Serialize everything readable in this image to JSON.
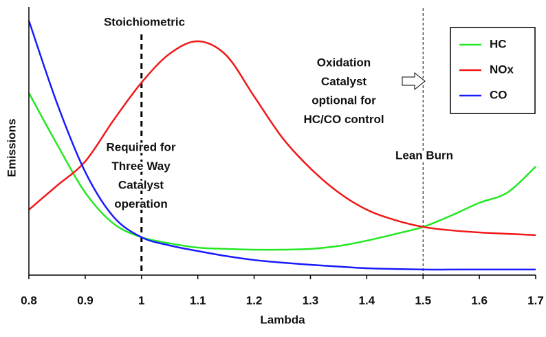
{
  "chart_data": {
    "type": "line",
    "x_label": "Lambda",
    "y_label": "Emissions",
    "x": [
      0.8,
      0.85,
      0.9,
      0.95,
      1.0,
      1.05,
      1.1,
      1.15,
      1.2,
      1.25,
      1.3,
      1.35,
      1.4,
      1.45,
      1.5,
      1.55,
      1.6,
      1.65,
      1.7
    ],
    "series": [
      {
        "name": "HC",
        "color": "#22e822",
        "values": [
          6.88,
          4.94,
          3.12,
          1.95,
          1.43,
          1.2,
          1.04,
          0.99,
          0.96,
          0.96,
          0.99,
          1.1,
          1.3,
          1.55,
          1.82,
          2.25,
          2.73,
          3.12,
          4.1
        ]
      },
      {
        "name": "NOx",
        "color": "#f01818",
        "values": [
          2.47,
          3.38,
          4.29,
          5.84,
          7.27,
          8.36,
          8.83,
          8.31,
          6.75,
          5.19,
          4.03,
          3.12,
          2.47,
          2.08,
          1.82,
          1.69,
          1.61,
          1.56,
          1.51
        ]
      },
      {
        "name": "CO",
        "color": "#1a1aff",
        "values": [
          9.61,
          6.49,
          3.9,
          2.21,
          1.43,
          1.12,
          0.91,
          0.72,
          0.57,
          0.47,
          0.39,
          0.32,
          0.26,
          0.23,
          0.21,
          0.21,
          0.21,
          0.21,
          0.21
        ]
      }
    ],
    "xlim": [
      0.8,
      1.7
    ],
    "xticks": [
      0.8,
      0.9,
      1,
      1.1,
      1.2,
      1.3,
      1.4,
      1.5,
      1.6,
      1.7
    ],
    "ylim": [
      0,
      10
    ],
    "reference_lines": [
      1,
      1.5
    ],
    "annotations": [
      [
        "Stoichiometric"
      ],
      [
        "Required for",
        "Three Way",
        "Catalyst",
        "operation"
      ],
      [
        "Oxidation",
        "Catalyst",
        "optional for",
        "HC/CO control"
      ],
      [
        "Lean Burn"
      ]
    ]
  }
}
